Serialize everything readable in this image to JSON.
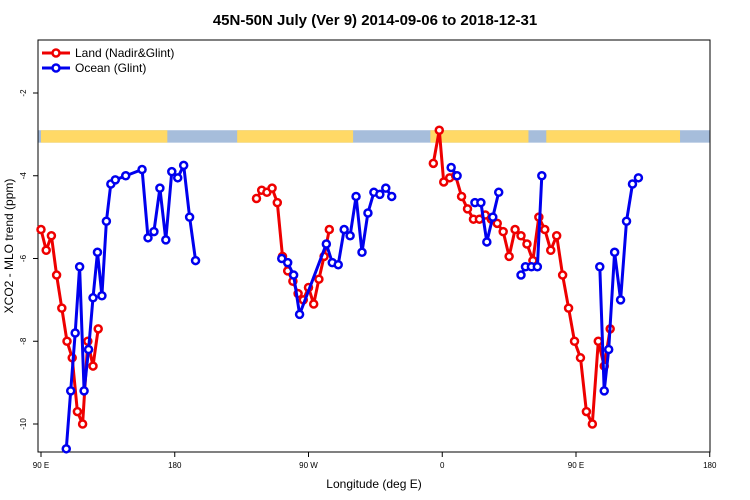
{
  "chart_data": {
    "type": "line",
    "title": "45N-50N July (Ver 9)   2014-09-06 to 2018-12-31",
    "xlabel": "Longitude (deg E)",
    "ylabel": "XCO2 - MLO trend (ppm)",
    "xlim": [
      90,
      450
    ],
    "ylim": [
      -10.6,
      3.2
    ],
    "xticks": [
      {
        "value": 90,
        "label": "90 E"
      },
      {
        "value": 180,
        "label": "180"
      },
      {
        "value": 270,
        "label": "90 W"
      },
      {
        "value": 360,
        "label": "0"
      },
      {
        "value": 450,
        "label": "90 E"
      },
      {
        "value": 540,
        "label": "180"
      }
    ],
    "yticks": [
      -2,
      -4,
      -6,
      -8,
      -10
    ],
    "legend_position": "top-left",
    "land_ocean_band": {
      "y_range": [
        -3.2,
        -2.9
      ],
      "land_color": "#FFD966",
      "ocean_color": "#A6BDDB"
    },
    "series": [
      {
        "name": "Land (Nadir&Glint)",
        "color": "#ee0000",
        "segments": [
          [
            [
              90,
              -5.3
            ],
            [
              93.5,
              -5.8
            ],
            [
              97,
              -5.45
            ],
            [
              100.5,
              -6.4
            ],
            [
              104,
              -7.2
            ],
            [
              107.5,
              -8.0
            ],
            [
              111,
              -8.4
            ],
            [
              114.5,
              -9.7
            ],
            [
              118,
              -10.0
            ],
            [
              121.5,
              -8.0
            ],
            [
              125,
              -8.6
            ],
            [
              128.5,
              -7.7
            ]
          ],
          [
            [
              235,
              -4.55
            ],
            [
              238.5,
              -4.35
            ],
            [
              242,
              -4.4
            ],
            [
              245.5,
              -4.3
            ],
            [
              249,
              -4.65
            ],
            [
              252.5,
              -5.95
            ],
            [
              256,
              -6.3
            ],
            [
              259.5,
              -6.55
            ],
            [
              263,
              -6.85
            ],
            [
              266.5,
              -7.0
            ],
            [
              270,
              -6.7
            ],
            [
              273.5,
              -7.1
            ],
            [
              277,
              -6.5
            ],
            [
              280.5,
              -5.95
            ],
            [
              284,
              -5.3
            ]
          ],
          [
            [
              354,
              -3.7
            ],
            [
              358,
              -2.9
            ],
            [
              361,
              -4.15
            ],
            [
              365,
              -4.05
            ],
            [
              369,
              -4.0
            ],
            [
              373,
              -4.5
            ],
            [
              377,
              -4.8
            ],
            [
              381,
              -5.05
            ],
            [
              385,
              -5.05
            ],
            [
              389,
              -4.95
            ],
            [
              393,
              -5.05
            ],
            [
              397,
              -5.15
            ],
            [
              401,
              -5.35
            ],
            [
              405,
              -5.95
            ],
            [
              409,
              -5.3
            ],
            [
              413,
              -5.45
            ],
            [
              417,
              -5.65
            ],
            [
              421,
              -6.05
            ],
            [
              425,
              -5.0
            ],
            [
              429,
              -5.3
            ],
            [
              433,
              -5.8
            ],
            [
              437,
              -5.45
            ],
            [
              441,
              -6.4
            ],
            [
              445,
              -7.2
            ],
            [
              449,
              -8.0
            ],
            [
              453,
              -8.4
            ],
            [
              457,
              -9.7
            ],
            [
              461,
              -10.0
            ],
            [
              465,
              -8.0
            ],
            [
              469,
              -8.6
            ],
            [
              473,
              -7.7
            ]
          ]
        ]
      },
      {
        "name": "Ocean (Glint)",
        "color": "#0000ee",
        "segments": [
          [
            [
              107,
              -10.6
            ],
            [
              110,
              -9.2
            ],
            [
              113,
              -7.8
            ],
            [
              116,
              -6.2
            ],
            [
              119,
              -9.2
            ],
            [
              122,
              -8.2
            ],
            [
              125,
              -6.95
            ],
            [
              128,
              -5.85
            ],
            [
              131,
              -6.9
            ],
            [
              134,
              -5.1
            ],
            [
              137,
              -4.2
            ],
            [
              140,
              -4.1
            ],
            [
              147,
              -4.0
            ],
            [
              158,
              -3.85
            ],
            [
              162,
              -5.5
            ],
            [
              166,
              -5.35
            ],
            [
              170,
              -4.3
            ],
            [
              174,
              -5.55
            ],
            [
              178,
              -3.9
            ],
            [
              182,
              -4.05
            ],
            [
              186,
              -3.75
            ],
            [
              190,
              -5.0
            ],
            [
              194,
              -6.05
            ]
          ],
          [
            [
              252,
              -6.0
            ],
            [
              256,
              -6.1
            ],
            [
              260,
              -6.4
            ],
            [
              264,
              -7.35
            ],
            [
              282,
              -5.65
            ],
            [
              286,
              -6.1
            ],
            [
              290,
              -6.15
            ],
            [
              294,
              -5.3
            ],
            [
              298,
              -5.45
            ],
            [
              302,
              -4.5
            ],
            [
              306,
              -5.85
            ],
            [
              310,
              -4.9
            ],
            [
              314,
              -4.4
            ],
            [
              318,
              -4.45
            ],
            [
              322,
              -4.3
            ],
            [
              326,
              -4.5
            ]
          ],
          [
            [
              366,
              -3.8
            ],
            [
              370,
              -4.0
            ]
          ],
          [
            [
              382,
              -4.65
            ],
            [
              386,
              -4.65
            ],
            [
              390,
              -5.6
            ],
            [
              394,
              -5.0
            ],
            [
              398,
              -4.4
            ]
          ],
          [
            [
              413,
              -6.4
            ],
            [
              416,
              -6.2
            ],
            [
              420,
              -6.2
            ],
            [
              424,
              -6.2
            ],
            [
              427,
              -4.0
            ]
          ],
          [
            [
              466,
              -6.2
            ],
            [
              469,
              -9.2
            ],
            [
              472,
              -8.2
            ],
            [
              476,
              -5.85
            ],
            [
              480,
              -7.0
            ],
            [
              484,
              -5.1
            ],
            [
              488,
              -4.2
            ],
            [
              492,
              -4.05
            ]
          ]
        ]
      }
    ]
  }
}
